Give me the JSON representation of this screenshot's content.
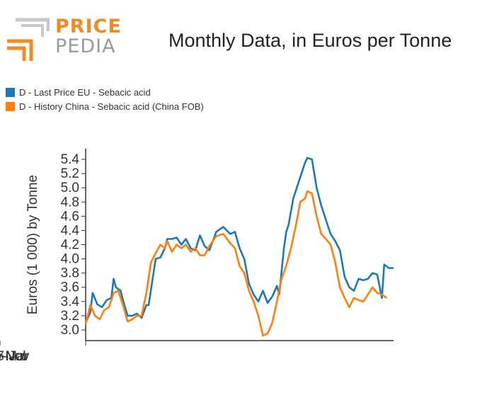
{
  "header": {
    "logo": {
      "word1": "PRICE",
      "word2": "PEDIA"
    },
    "title": "Monthly Data, in Euros per Tonne"
  },
  "colors": {
    "eu": "#1f77b4",
    "china": "#ff7f0e",
    "logo_orange": "#f08a24",
    "logo_gray": "#9a9a9a"
  },
  "legend": {
    "items": [
      {
        "label": "D - Last Price EU - Sebacic acid",
        "color": "#1f77b4"
      },
      {
        "label": "D - History China - Sebacic acid (China FOB)",
        "color": "#ff7f0e"
      }
    ]
  },
  "chart_data": {
    "type": "line",
    "xlabel": "",
    "ylabel": "Euros (1 000) by Tonne",
    "ylim": [
      2.85,
      5.55
    ],
    "x_range": [
      "2014-07",
      "2025-07"
    ],
    "x_ticks": [
      "2017-Jul",
      "2020-Mar",
      "2022-Nov",
      "2025-Jul"
    ],
    "y_ticks": [
      "3.0",
      "3.2",
      "3.4",
      "3.6",
      "3.8",
      "4.0",
      "4.2",
      "4.4",
      "4.6",
      "4.8",
      "5.0",
      "5.2",
      "5.4"
    ],
    "grid": false,
    "legend_position": "top-left",
    "series": [
      {
        "name": "D - Last Price EU - Sebacic acid",
        "color": "#1f77b4",
        "points": [
          [
            "2014-07",
            3.1
          ],
          [
            "2014-09",
            3.25
          ],
          [
            "2014-10",
            3.52
          ],
          [
            "2014-12",
            3.36
          ],
          [
            "2015-02",
            3.32
          ],
          [
            "2015-04",
            3.42
          ],
          [
            "2015-06",
            3.45
          ],
          [
            "2015-07",
            3.72
          ],
          [
            "2015-08",
            3.6
          ],
          [
            "2015-10",
            3.55
          ],
          [
            "2015-11",
            3.42
          ],
          [
            "2016-01",
            3.2
          ],
          [
            "2016-03",
            3.2
          ],
          [
            "2016-05",
            3.23
          ],
          [
            "2016-07",
            3.17
          ],
          [
            "2016-09",
            3.35
          ],
          [
            "2016-10",
            3.35
          ],
          [
            "2017-01",
            4.0
          ],
          [
            "2017-03",
            4.02
          ],
          [
            "2017-05",
            4.15
          ],
          [
            "2017-06",
            4.28
          ],
          [
            "2017-08",
            4.28
          ],
          [
            "2017-10",
            4.3
          ],
          [
            "2017-12",
            4.2
          ],
          [
            "2018-02",
            4.28
          ],
          [
            "2018-04",
            4.15
          ],
          [
            "2018-06",
            4.12
          ],
          [
            "2018-08",
            4.33
          ],
          [
            "2018-10",
            4.18
          ],
          [
            "2018-12",
            4.12
          ],
          [
            "2019-03",
            4.38
          ],
          [
            "2019-06",
            4.45
          ],
          [
            "2019-09",
            4.35
          ],
          [
            "2019-11",
            4.38
          ],
          [
            "2020-01",
            4.15
          ],
          [
            "2020-03",
            4.0
          ],
          [
            "2020-05",
            3.65
          ],
          [
            "2020-07",
            3.5
          ],
          [
            "2020-09",
            3.4
          ],
          [
            "2020-11",
            3.55
          ],
          [
            "2021-01",
            3.38
          ],
          [
            "2021-03",
            3.47
          ],
          [
            "2021-05",
            3.62
          ],
          [
            "2021-06",
            3.5
          ],
          [
            "2021-08",
            4.15
          ],
          [
            "2021-09",
            4.38
          ],
          [
            "2021-10",
            4.48
          ],
          [
            "2021-12",
            4.85
          ],
          [
            "2022-02",
            5.05
          ],
          [
            "2022-04",
            5.25
          ],
          [
            "2022-05",
            5.35
          ],
          [
            "2022-06",
            5.42
          ],
          [
            "2022-08",
            5.4
          ],
          [
            "2022-10",
            5.0
          ],
          [
            "2022-12",
            4.75
          ],
          [
            "2023-02",
            4.55
          ],
          [
            "2023-04",
            4.35
          ],
          [
            "2023-06",
            4.25
          ],
          [
            "2023-08",
            4.12
          ],
          [
            "2023-10",
            3.75
          ],
          [
            "2023-12",
            3.6
          ],
          [
            "2024-02",
            3.55
          ],
          [
            "2024-04",
            3.72
          ],
          [
            "2024-06",
            3.7
          ],
          [
            "2024-08",
            3.72
          ],
          [
            "2024-10",
            3.8
          ],
          [
            "2024-12",
            3.78
          ],
          [
            "2025-02",
            3.45
          ],
          [
            "2025-03",
            3.92
          ],
          [
            "2025-05",
            3.87
          ],
          [
            "2025-07",
            3.87
          ]
        ]
      },
      {
        "name": "D - History China - Sebacic acid (China FOB)",
        "color": "#ff7f0e",
        "points": [
          [
            "2014-07",
            3.08
          ],
          [
            "2014-09",
            3.35
          ],
          [
            "2014-11",
            3.2
          ],
          [
            "2015-01",
            3.15
          ],
          [
            "2015-03",
            3.28
          ],
          [
            "2015-05",
            3.32
          ],
          [
            "2015-07",
            3.52
          ],
          [
            "2015-09",
            3.55
          ],
          [
            "2015-11",
            3.35
          ],
          [
            "2016-01",
            3.12
          ],
          [
            "2016-03",
            3.15
          ],
          [
            "2016-05",
            3.2
          ],
          [
            "2016-07",
            3.2
          ],
          [
            "2016-09",
            3.52
          ],
          [
            "2016-11",
            3.95
          ],
          [
            "2017-01",
            4.08
          ],
          [
            "2017-03",
            4.2
          ],
          [
            "2017-05",
            4.15
          ],
          [
            "2017-06",
            4.25
          ],
          [
            "2017-08",
            4.1
          ],
          [
            "2017-10",
            4.2
          ],
          [
            "2017-12",
            4.15
          ],
          [
            "2018-02",
            4.2
          ],
          [
            "2018-04",
            4.1
          ],
          [
            "2018-06",
            4.15
          ],
          [
            "2018-08",
            4.05
          ],
          [
            "2018-10",
            4.05
          ],
          [
            "2018-12",
            4.18
          ],
          [
            "2019-03",
            4.32
          ],
          [
            "2019-06",
            4.35
          ],
          [
            "2019-09",
            4.22
          ],
          [
            "2019-11",
            4.15
          ],
          [
            "2020-01",
            3.9
          ],
          [
            "2020-03",
            3.8
          ],
          [
            "2020-05",
            3.55
          ],
          [
            "2020-07",
            3.4
          ],
          [
            "2020-09",
            3.2
          ],
          [
            "2020-11",
            2.92
          ],
          [
            "2021-01",
            2.95
          ],
          [
            "2021-03",
            3.1
          ],
          [
            "2021-05",
            3.4
          ],
          [
            "2021-07",
            3.72
          ],
          [
            "2021-09",
            3.9
          ],
          [
            "2021-11",
            4.15
          ],
          [
            "2022-01",
            4.45
          ],
          [
            "2022-03",
            4.8
          ],
          [
            "2022-05",
            4.85
          ],
          [
            "2022-06",
            4.95
          ],
          [
            "2022-08",
            4.92
          ],
          [
            "2022-10",
            4.6
          ],
          [
            "2022-12",
            4.35
          ],
          [
            "2023-02",
            4.28
          ],
          [
            "2023-04",
            4.2
          ],
          [
            "2023-06",
            3.95
          ],
          [
            "2023-08",
            3.6
          ],
          [
            "2023-10",
            3.45
          ],
          [
            "2023-12",
            3.32
          ],
          [
            "2024-02",
            3.45
          ],
          [
            "2024-04",
            3.42
          ],
          [
            "2024-06",
            3.4
          ],
          [
            "2024-08",
            3.5
          ],
          [
            "2024-10",
            3.6
          ],
          [
            "2024-12",
            3.52
          ],
          [
            "2025-02",
            3.5
          ],
          [
            "2025-04",
            3.45
          ]
        ]
      }
    ]
  }
}
